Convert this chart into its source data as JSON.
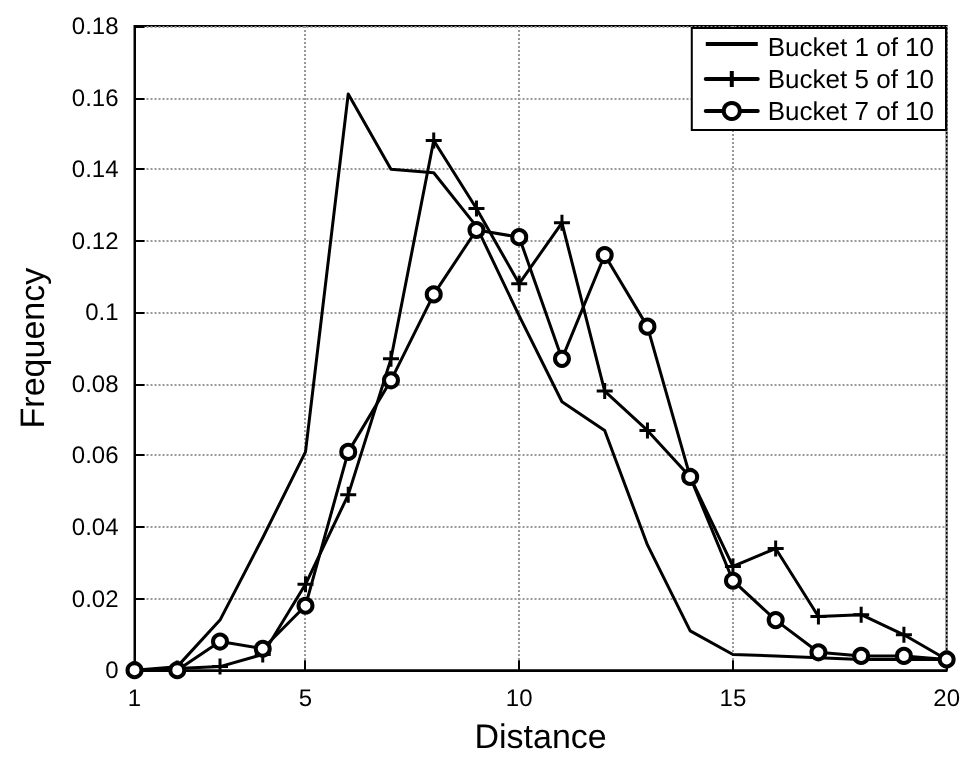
{
  "chart_data": {
    "type": "line",
    "xlabel": "Distance",
    "ylabel": "Frequency",
    "x": [
      1,
      2,
      3,
      4,
      5,
      6,
      7,
      8,
      9,
      10,
      11,
      12,
      13,
      14,
      15,
      16,
      17,
      18,
      19,
      20
    ],
    "series": [
      {
        "name": "Bucket 1 of 10",
        "color": "#000000",
        "marker": "none",
        "values": [
          0,
          0.001,
          0.014,
          0.037,
          0.061,
          0.161,
          0.14,
          0.139,
          0.124,
          0.099,
          0.075,
          0.067,
          0.035,
          0.011,
          0.0044,
          0.004,
          0.0035,
          0.003,
          0.003,
          0.003
        ]
      },
      {
        "name": "Bucket 5 of 10",
        "color": "#000000",
        "marker": "cross",
        "values": [
          0,
          0.0005,
          0.001,
          0.0044,
          0.024,
          0.049,
          0.087,
          0.148,
          0.129,
          0.108,
          0.125,
          0.078,
          0.067,
          0.054,
          0.029,
          0.034,
          0.015,
          0.0155,
          0.0099,
          0.003
        ]
      },
      {
        "name": "Bucket 7 of 10",
        "color": "#000000",
        "marker": "circle",
        "values": [
          0,
          0,
          0.008,
          0.006,
          0.018,
          0.061,
          0.081,
          0.105,
          0.123,
          0.121,
          0.087,
          0.116,
          0.096,
          0.054,
          0.025,
          0.014,
          0.005,
          0.004,
          0.004,
          0.003
        ]
      }
    ],
    "xlim": [
      1,
      20
    ],
    "xticks": [
      1,
      5,
      10,
      15,
      20
    ],
    "ylim": [
      0,
      0.18
    ],
    "yticks": [
      0,
      0.02,
      0.04,
      0.06,
      0.08,
      0.1,
      0.12,
      0.14,
      0.16,
      0.18
    ],
    "grid": true,
    "legend": "top right",
    "line_style": "solid"
  }
}
